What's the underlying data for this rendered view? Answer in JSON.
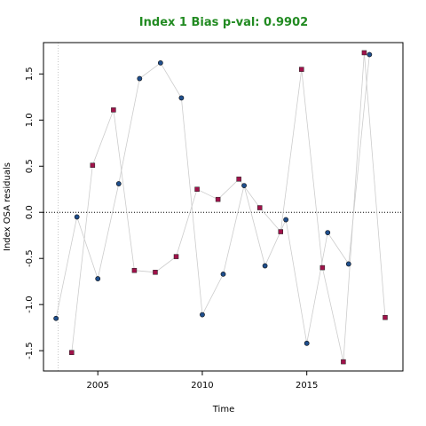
{
  "chart_data": {
    "type": "scatter",
    "title": "Index 1 Bias p-val: 0.9902",
    "title_color": "#228B22",
    "xlabel": "Time",
    "ylabel": "Index OSA residuals",
    "xlim": [
      2002.4,
      2019.6
    ],
    "ylim": [
      -1.72,
      1.84
    ],
    "x_ticks": [
      2005,
      2010,
      2015
    ],
    "y_ticks": [
      -1.5,
      -1.0,
      -0.5,
      0.0,
      0.5,
      1.0,
      1.5
    ],
    "y_tick_labels": [
      "-1.5",
      "-1.0",
      "-0.5",
      "0.0",
      "0.5",
      "1.0",
      "1.5"
    ],
    "reference_line_y": 0,
    "reference_line_x": 2003.1,
    "grid": false,
    "series": [
      {
        "color": "#1f4e8c",
        "marker": "circle",
        "line_color": "#cccccc",
        "x": [
          2003.0,
          2004.0,
          2005.0,
          2006.0,
          2007.0,
          2008.0,
          2009.0,
          2010.0,
          2011.0,
          2012.0,
          2013.0,
          2014.0,
          2015.0,
          2016.0,
          2017.0,
          2018.0
        ],
        "y": [
          -1.15,
          -0.05,
          -0.72,
          0.31,
          1.45,
          1.62,
          1.24,
          -1.11,
          -0.67,
          0.29,
          -0.58,
          -0.08,
          -1.42,
          -0.22,
          -0.56,
          1.71
        ]
      },
      {
        "color": "#a0124a",
        "marker": "square",
        "line_color": "#cccccc",
        "x": [
          2003.75,
          2004.75,
          2005.75,
          2006.75,
          2007.75,
          2008.75,
          2009.75,
          2010.75,
          2011.75,
          2012.75,
          2013.75,
          2014.75,
          2015.75,
          2016.75,
          2017.75,
          2018.75
        ],
        "y": [
          -1.52,
          0.51,
          1.11,
          -0.63,
          -0.65,
          -0.48,
          0.25,
          0.14,
          0.36,
          0.05,
          -0.21,
          1.55,
          -0.6,
          -1.62,
          1.73,
          -1.14
        ]
      }
    ]
  }
}
